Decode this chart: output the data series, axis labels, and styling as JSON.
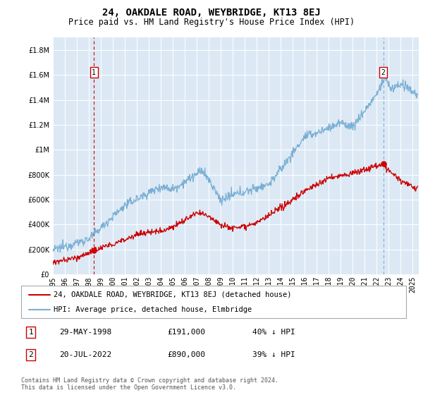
{
  "title": "24, OAKDALE ROAD, WEYBRIDGE, KT13 8EJ",
  "subtitle": "Price paid vs. HM Land Registry's House Price Index (HPI)",
  "plot_bg_color": "#dce9f5",
  "ylabel_ticks": [
    "£0",
    "£200K",
    "£400K",
    "£600K",
    "£800K",
    "£1M",
    "£1.2M",
    "£1.4M",
    "£1.6M",
    "£1.8M"
  ],
  "ytick_values": [
    0,
    200000,
    400000,
    600000,
    800000,
    1000000,
    1200000,
    1400000,
    1600000,
    1800000
  ],
  "ylim": [
    0,
    1900000
  ],
  "hpi_color": "#7bafd4",
  "price_color": "#cc0000",
  "vline1_color": "#cc0000",
  "vline2_color": "#7bafd4",
  "marker1_x": 1998.42,
  "marker1_y": 191000,
  "marker1_hpi_y": 1620000,
  "marker1_label": "1",
  "marker2_x": 2022.54,
  "marker2_y": 890000,
  "marker2_hpi_y": 1620000,
  "marker2_label": "2",
  "legend_line1": "24, OAKDALE ROAD, WEYBRIDGE, KT13 8EJ (detached house)",
  "legend_line2": "HPI: Average price, detached house, Elmbridge",
  "table_data": [
    [
      "1",
      "29-MAY-1998",
      "£191,000",
      "40% ↓ HPI"
    ],
    [
      "2",
      "20-JUL-2022",
      "£890,000",
      "39% ↓ HPI"
    ]
  ],
  "footer": "Contains HM Land Registry data © Crown copyright and database right 2024.\nThis data is licensed under the Open Government Licence v3.0.",
  "xmin": 1995,
  "xmax": 2025.5,
  "grid_color": "#ffffff",
  "title_fontsize": 10,
  "subtitle_fontsize": 8.5,
  "tick_fontsize": 7
}
